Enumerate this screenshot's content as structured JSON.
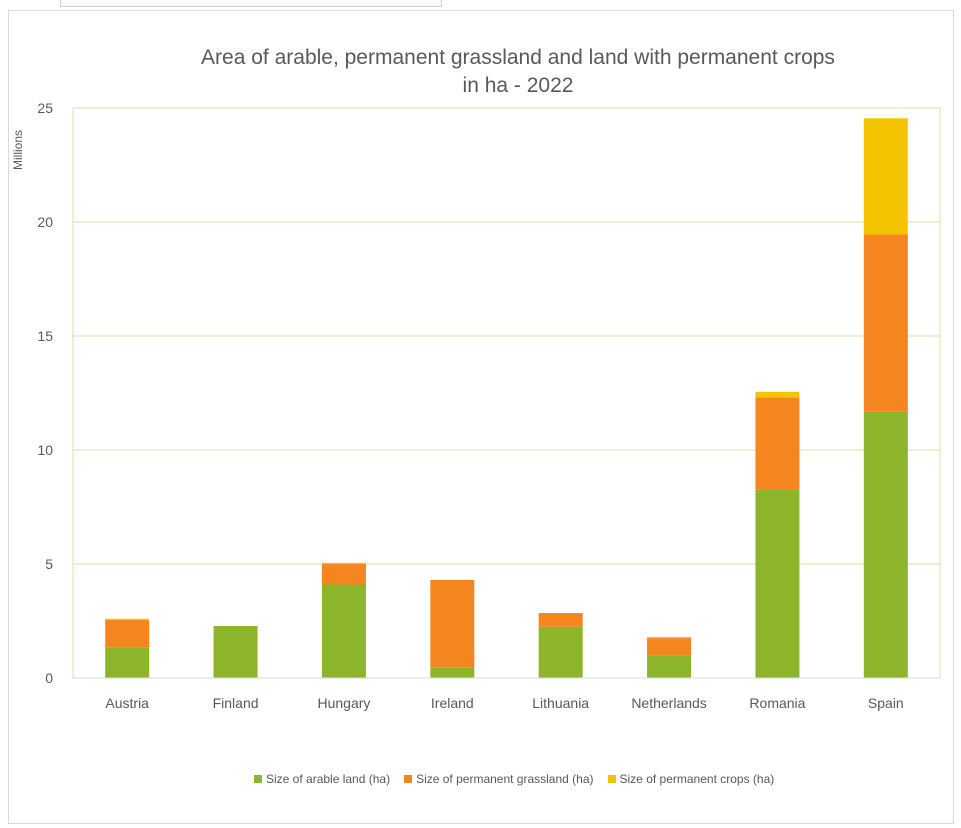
{
  "chart_data": {
    "type": "bar",
    "stacked": true,
    "title_lines": [
      "Area of arable, permanent grassland and land with permanent crops",
      "in ha - 2022"
    ],
    "ylabel": "Millions",
    "ylim": [
      0,
      25
    ],
    "yticks": [
      0,
      5,
      10,
      15,
      20,
      25
    ],
    "grid": true,
    "legend_position": "bottom",
    "categories": [
      "Austria",
      "Finland",
      "Hungary",
      "Ireland",
      "Lithuania",
      "Netherlands",
      "Romania",
      "Spain"
    ],
    "series": [
      {
        "name": "Size of arable land (ha)",
        "color": "#8cb52b",
        "values": [
          1.35,
          2.28,
          4.1,
          0.45,
          2.25,
          1.0,
          8.25,
          11.7
        ]
      },
      {
        "name": "Size of permanent grassland (ha)",
        "color": "#f5861f",
        "values": [
          1.2,
          0.0,
          0.9,
          3.85,
          0.6,
          0.75,
          4.05,
          7.75
        ]
      },
      {
        "name": "Size of permanent crops (ha)",
        "color": "#f5c400",
        "values": [
          0.05,
          0.0,
          0.05,
          0.0,
          0.0,
          0.05,
          0.25,
          5.1
        ]
      }
    ]
  }
}
